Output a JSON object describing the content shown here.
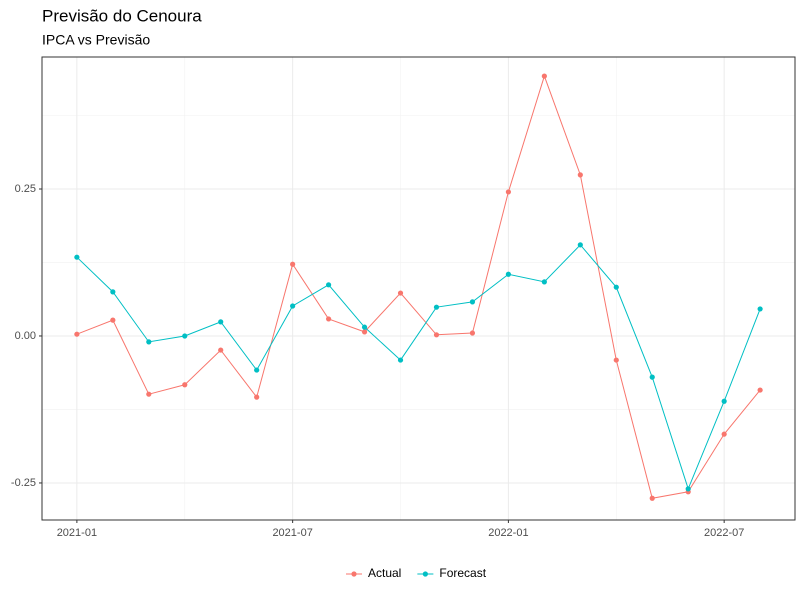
{
  "chart_data": {
    "type": "line",
    "title": "Previsão do Cenoura",
    "subtitle": "IPCA vs Previsão",
    "x": [
      "2021-01",
      "2021-02",
      "2021-03",
      "2021-04",
      "2021-05",
      "2021-06",
      "2021-07",
      "2021-08",
      "2021-09",
      "2021-10",
      "2021-11",
      "2021-12",
      "2022-01",
      "2022-02",
      "2022-03",
      "2022-04",
      "2022-05",
      "2022-06",
      "2022-07",
      "2022-08"
    ],
    "xticks": [
      "2021-01",
      "2021-07",
      "2022-01",
      "2022-07"
    ],
    "series": [
      {
        "name": "Actual",
        "color": "#F8766D",
        "values": [
          0.003,
          0.027,
          -0.099,
          -0.083,
          -0.024,
          -0.104,
          0.122,
          0.029,
          0.007,
          0.073,
          0.002,
          0.005,
          0.245,
          0.442,
          0.274,
          -0.041,
          -0.276,
          -0.265,
          -0.167,
          -0.092
        ]
      },
      {
        "name": "Forecast",
        "color": "#00BFC4",
        "values": [
          0.134,
          0.075,
          -0.01,
          0.0,
          0.024,
          -0.058,
          0.051,
          0.087,
          0.015,
          -0.041,
          0.049,
          0.058,
          0.105,
          0.092,
          0.155,
          0.083,
          -0.07,
          -0.26,
          -0.111,
          0.046
        ]
      }
    ],
    "ylim": [
      -0.313,
      0.4745
    ],
    "yticks": [
      {
        "value": -0.25,
        "label": "-0.25"
      },
      {
        "value": 0,
        "label": "0.00"
      },
      {
        "value": 0.25,
        "label": "0.25"
      }
    ],
    "grid": true,
    "legend": "bottom"
  }
}
